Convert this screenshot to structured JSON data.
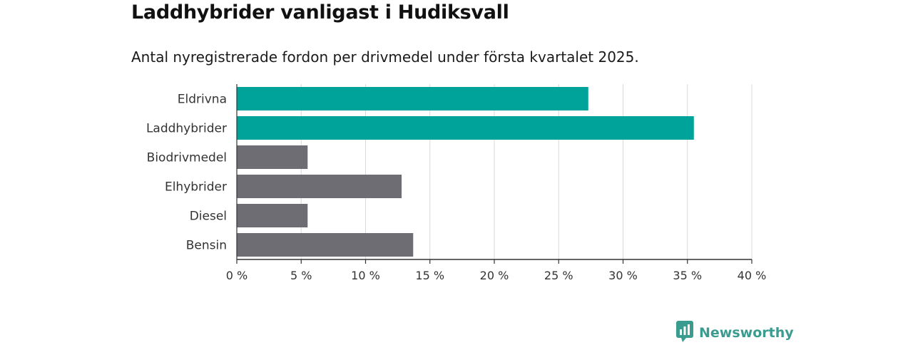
{
  "title": "Laddhybrider vanligast i Hudiksvall",
  "subtitle": "Antal nyregistrerade fordon per drivmedel under första kvartalet 2025.",
  "brand": {
    "name": "Newsworthy",
    "icon": "newsworthy-logo-icon",
    "color": "#3a9b8f"
  },
  "colors": {
    "highlight": "#00a39a",
    "default": "#6d6d73",
    "grid": "#d9d9d9",
    "axis": "#333333"
  },
  "chart_data": {
    "type": "bar",
    "orientation": "horizontal",
    "categories": [
      "Eldrivna",
      "Laddhybrider",
      "Biodrivmedel",
      "Elhybrider",
      "Diesel",
      "Bensin"
    ],
    "values": [
      27.3,
      35.5,
      5.5,
      12.8,
      5.5,
      13.7
    ],
    "highlighted": [
      true,
      true,
      false,
      false,
      false,
      false
    ],
    "unit": "%",
    "xlim": [
      0,
      40
    ],
    "xticks": [
      0,
      5,
      10,
      15,
      20,
      25,
      30,
      35,
      40
    ],
    "xtick_labels": [
      "0 %",
      "5 %",
      "10 %",
      "15 %",
      "20 %",
      "25 %",
      "30 %",
      "35 %",
      "40 %"
    ],
    "grid": true,
    "legend": "none"
  }
}
